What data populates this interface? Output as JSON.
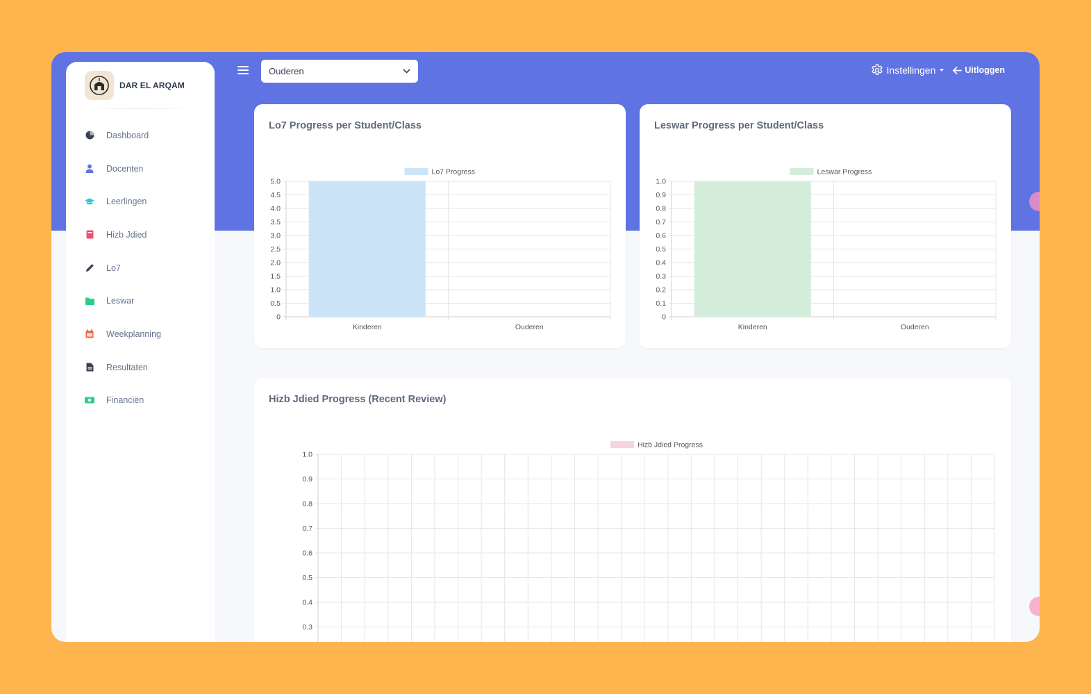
{
  "brand": {
    "name": "DAR EL ARQAM"
  },
  "sidebar": {
    "items": [
      {
        "label": "Dashboard",
        "icon": "pie-chart-icon",
        "color": "#3A4152"
      },
      {
        "label": "Docenten",
        "icon": "user-icon",
        "color": "#5F73E3"
      },
      {
        "label": "Leerlingen",
        "icon": "graduation-cap-icon",
        "color": "#2BC8E3"
      },
      {
        "label": "Hizb Jdied",
        "icon": "book-icon",
        "color": "#EF4F74"
      },
      {
        "label": "Lo7",
        "icon": "pencil-icon",
        "color": "#3A4152"
      },
      {
        "label": "Leswar",
        "icon": "folder-icon",
        "color": "#2DCE89"
      },
      {
        "label": "Weekplanning",
        "icon": "calendar-icon",
        "color": "#F5603E"
      },
      {
        "label": "Resultaten",
        "icon": "document-icon",
        "color": "#3A4152"
      },
      {
        "label": "Financiën",
        "icon": "money-icon",
        "color": "#2DCE89"
      }
    ]
  },
  "topbar": {
    "select_value": "Ouderen",
    "settings_label": "Instellingen",
    "logout_label": "Uitloggen"
  },
  "colors": {
    "header": "#5F73E3",
    "lo7_bar": "#CCE4F8",
    "leswar_bar": "#D4EDDB",
    "hizb_legend": "#F8D5DC"
  },
  "chart_data": [
    {
      "type": "bar",
      "title": "Lo7 Progress per Student/Class",
      "categories": [
        "Kinderen",
        "Ouderen"
      ],
      "series": [
        {
          "name": "Lo7 Progress",
          "values": [
            5,
            0
          ]
        }
      ],
      "ylim": [
        0,
        5
      ],
      "yticks": [
        "0",
        "0.5",
        "1.0",
        "1.5",
        "2.0",
        "2.5",
        "3.0",
        "3.5",
        "4.0",
        "4.5",
        "5.0"
      ],
      "grid": true,
      "legend": "top-center"
    },
    {
      "type": "bar",
      "title": "Leswar Progress per Student/Class",
      "categories": [
        "Kinderen",
        "Ouderen"
      ],
      "series": [
        {
          "name": "Leswar Progress",
          "values": [
            1,
            0
          ]
        }
      ],
      "ylim": [
        0,
        1
      ],
      "yticks": [
        "0",
        "0.1",
        "0.2",
        "0.3",
        "0.4",
        "0.5",
        "0.6",
        "0.7",
        "0.8",
        "0.9",
        "1.0"
      ],
      "grid": true,
      "legend": "top-center"
    },
    {
      "type": "line",
      "title": "Hizb Jdied Progress (Recent Review)",
      "series": [
        {
          "name": "Hizb Jdied Progress",
          "values": []
        }
      ],
      "ylim": [
        0,
        1
      ],
      "yticks_visible": [
        "0.3",
        "0.4",
        "0.5",
        "0.6",
        "0.7",
        "0.8",
        "0.9",
        "1.0"
      ],
      "grid": true,
      "legend": "top-center"
    }
  ]
}
